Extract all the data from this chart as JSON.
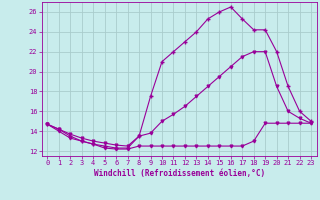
{
  "xlabel": "Windchill (Refroidissement éolien,°C)",
  "background_color": "#c8ecec",
  "line_color": "#990099",
  "grid_color": "#aacccc",
  "xlim": [
    -0.5,
    23.5
  ],
  "ylim": [
    11.5,
    27.0
  ],
  "xticks": [
    0,
    1,
    2,
    3,
    4,
    5,
    6,
    7,
    8,
    9,
    10,
    11,
    12,
    13,
    14,
    15,
    16,
    17,
    18,
    19,
    20,
    21,
    22,
    23
  ],
  "yticks": [
    12,
    14,
    16,
    18,
    20,
    22,
    24,
    26
  ],
  "curve1_x": [
    0,
    1,
    2,
    3,
    4,
    5,
    6,
    7,
    8,
    9,
    10,
    11,
    12,
    13,
    14,
    15,
    16,
    17,
    18,
    19,
    20,
    21,
    22,
    23
  ],
  "curve1_y": [
    14.7,
    14.0,
    13.3,
    13.0,
    12.7,
    12.3,
    12.2,
    12.2,
    12.5,
    12.5,
    12.5,
    12.5,
    12.5,
    12.5,
    12.5,
    12.5,
    12.5,
    12.5,
    13.0,
    14.8,
    14.8,
    14.8,
    14.8,
    14.8
  ],
  "curve2_x": [
    0,
    1,
    2,
    3,
    4,
    5,
    6,
    7,
    8,
    9,
    10,
    11,
    12,
    13,
    14,
    15,
    16,
    17,
    18,
    19,
    20,
    21,
    22,
    23
  ],
  "curve2_y": [
    14.7,
    14.2,
    13.7,
    13.3,
    13.0,
    12.8,
    12.6,
    12.5,
    13.5,
    13.8,
    15.0,
    15.7,
    16.5,
    17.5,
    18.5,
    19.5,
    20.5,
    21.5,
    22.0,
    22.0,
    18.5,
    16.0,
    15.3,
    14.8
  ],
  "curve3_x": [
    0,
    1,
    2,
    3,
    4,
    5,
    6,
    7,
    8,
    9,
    10,
    11,
    12,
    13,
    14,
    15,
    16,
    17,
    18,
    19,
    20,
    21,
    22,
    23
  ],
  "curve3_y": [
    14.7,
    14.2,
    13.5,
    13.0,
    12.7,
    12.5,
    12.3,
    12.3,
    13.5,
    17.5,
    21.0,
    22.0,
    23.0,
    24.0,
    25.3,
    26.0,
    26.5,
    25.3,
    24.2,
    24.2,
    22.0,
    18.5,
    16.0,
    15.0
  ],
  "marker1": "v",
  "marker2": "v",
  "marker3": "+"
}
